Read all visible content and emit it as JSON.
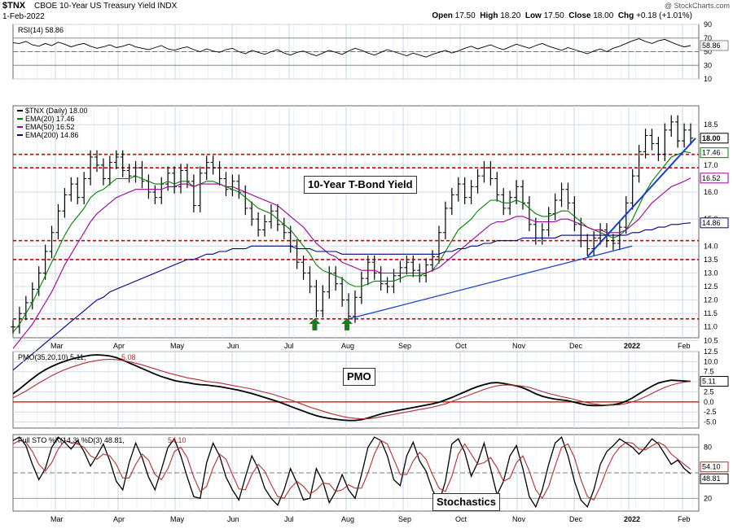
{
  "header": {
    "symbol": "$TNX",
    "name": "CBOE 10-Year US Treasury Yield INDX",
    "date": "1-Feb-2022",
    "copyright": "@ StockCharts.com",
    "quote": {
      "open_label": "Open",
      "open": "17.50",
      "high_label": "High",
      "high": "18.20",
      "low_label": "Low",
      "low": "17.50",
      "close_label": "Close",
      "close": "18.00",
      "chg_label": "Chg",
      "chg": "+0.18 (+1.01%)"
    }
  },
  "colors": {
    "price": "#000000",
    "ema20": "#008000",
    "ema50": "#990099",
    "ema200": "#000080",
    "trendline": "#1a3fcc",
    "support": "#cc0000",
    "pmo_signal": "#b03030",
    "arrow": "#1f7a1f",
    "grid": "#c9d4e3"
  },
  "chart_data": [
    {
      "type": "line",
      "panel": "RSI",
      "legend": "RSI(14) 58.86",
      "ylim": [
        10,
        90
      ],
      "y_ticks": [
        90,
        70,
        50,
        30,
        10
      ],
      "last_label": "58.86",
      "series": [
        {
          "name": "RSI(14)",
          "values": [
            63,
            62,
            65,
            60,
            58,
            62,
            59,
            64,
            61,
            57,
            60,
            62,
            58,
            55,
            57,
            60,
            56,
            58,
            61,
            57,
            55,
            53,
            56,
            59,
            54,
            52,
            55,
            57,
            53,
            50,
            54,
            51,
            49,
            53,
            55,
            50,
            47,
            52,
            49,
            46,
            50,
            53,
            48,
            45,
            49,
            51,
            47,
            44,
            48,
            52,
            49,
            46,
            51,
            55,
            52,
            48,
            45,
            49,
            53,
            50,
            47,
            44,
            48,
            45,
            42,
            46,
            49,
            52,
            48,
            51,
            55,
            58,
            54,
            57,
            60,
            56,
            53,
            57,
            61,
            58,
            55,
            59,
            62,
            58,
            55,
            52,
            56,
            53,
            50,
            47,
            51,
            54,
            50,
            55,
            58,
            62,
            66,
            69,
            65,
            62,
            66,
            68,
            64,
            60,
            57,
            59
          ]
        }
      ]
    },
    {
      "type": "line",
      "panel": "Price",
      "legend": [
        "$TNX (Daily) 18.00",
        "EMA(20) 17.46",
        "EMA(50) 16.52",
        "EMA(200) 14.86"
      ],
      "ylim": [
        10.6,
        19.2
      ],
      "y_ticks": [
        "18.5",
        "17.0",
        "16.0",
        "15.0",
        "14.0",
        "13.5",
        "13.0",
        "12.5",
        "12.0",
        "11.5",
        "11.0",
        "10.5"
      ],
      "y_tick_values": [
        18.5,
        17.0,
        16.0,
        15.0,
        14.0,
        13.5,
        13.0,
        12.5,
        12.0,
        11.5,
        11.0,
        10.5
      ],
      "x_ticks": [
        "Mar",
        "Apr",
        "May",
        "Jun",
        "Jul",
        "Aug",
        "Sep",
        "Oct",
        "Nov",
        "Dec",
        "2022",
        "Feb"
      ],
      "title": "10-Year T-Bond Yield",
      "last_labels": [
        {
          "text": "18.00",
          "value": 18.0,
          "series": "price"
        },
        {
          "text": "17.46",
          "value": 17.46,
          "series": "ema20"
        },
        {
          "text": "16.52",
          "value": 16.52,
          "series": "ema50"
        },
        {
          "text": "14.86",
          "value": 14.86,
          "series": "ema200"
        }
      ],
      "support_levels": [
        17.4,
        16.9,
        14.2,
        13.5,
        11.3
      ],
      "price": [
        11.0,
        11.5,
        11.9,
        12.4,
        13.0,
        13.8,
        14.5,
        15.3,
        15.9,
        16.3,
        15.8,
        16.5,
        17.3,
        17.0,
        16.5,
        17.1,
        17.3,
        16.8,
        16.6,
        16.9,
        16.4,
        16.0,
        15.8,
        16.3,
        16.7,
        16.2,
        16.8,
        16.4,
        15.5,
        16.7,
        17.1,
        16.9,
        16.5,
        16.1,
        16.4,
        16.0,
        15.4,
        15.0,
        14.6,
        14.9,
        15.3,
        14.8,
        14.5,
        14.0,
        13.4,
        13.0,
        12.5,
        11.6,
        12.3,
        13.0,
        12.6,
        12.0,
        11.4,
        12.1,
        12.8,
        13.4,
        13.0,
        12.6,
        12.5,
        12.9,
        13.2,
        13.4,
        13.1,
        12.9,
        13.3,
        13.6,
        14.5,
        15.4,
        15.9,
        16.3,
        15.8,
        16.2,
        16.6,
        16.9,
        16.5,
        15.9,
        15.4,
        15.8,
        16.2,
        15.6,
        14.8,
        14.3,
        14.6,
        15.2,
        15.7,
        16.1,
        15.6,
        14.8,
        14.2,
        13.9,
        14.3,
        14.6,
        14.2,
        14.1,
        14.7,
        15.6,
        16.6,
        17.5,
        18.1,
        17.8,
        17.4,
        18.3,
        18.6,
        17.9,
        18.3,
        18.0
      ],
      "ema20": [
        10.8,
        11.1,
        11.5,
        11.9,
        12.4,
        12.9,
        13.4,
        13.9,
        14.4,
        14.8,
        15.1,
        15.4,
        15.8,
        16.0,
        16.1,
        16.3,
        16.5,
        16.5,
        16.5,
        16.6,
        16.5,
        16.4,
        16.3,
        16.3,
        16.4,
        16.3,
        16.4,
        16.4,
        16.2,
        16.3,
        16.4,
        16.4,
        16.3,
        16.2,
        16.1,
        16.0,
        15.8,
        15.6,
        15.4,
        15.3,
        15.2,
        15.0,
        14.8,
        14.6,
        14.3,
        14.0,
        13.7,
        13.3,
        13.1,
        13.0,
        12.9,
        12.8,
        12.6,
        12.5,
        12.5,
        12.6,
        12.7,
        12.7,
        12.7,
        12.7,
        12.8,
        12.9,
        12.9,
        12.9,
        13.0,
        13.1,
        13.4,
        13.8,
        14.2,
        14.6,
        14.8,
        15.0,
        15.3,
        15.5,
        15.7,
        15.7,
        15.6,
        15.6,
        15.7,
        15.6,
        15.4,
        15.2,
        15.1,
        15.1,
        15.2,
        15.3,
        15.3,
        15.1,
        14.9,
        14.7,
        14.6,
        14.5,
        14.4,
        14.3,
        14.4,
        14.6,
        15.0,
        15.5,
        16.0,
        16.4,
        16.7,
        17.0,
        17.3,
        17.4,
        17.5,
        17.46
      ],
      "ema50": [
        10.2,
        10.5,
        10.8,
        11.1,
        11.5,
        11.9,
        12.3,
        12.8,
        13.3,
        13.7,
        14.1,
        14.5,
        14.9,
        15.2,
        15.4,
        15.6,
        15.8,
        15.9,
        16.0,
        16.1,
        16.1,
        16.1,
        16.1,
        16.1,
        16.2,
        16.2,
        16.3,
        16.3,
        16.2,
        16.3,
        16.3,
        16.3,
        16.3,
        16.2,
        16.2,
        16.1,
        16.0,
        15.9,
        15.8,
        15.7,
        15.6,
        15.5,
        15.3,
        15.1,
        14.9,
        14.7,
        14.4,
        14.1,
        13.9,
        13.7,
        13.6,
        13.4,
        13.3,
        13.2,
        13.1,
        13.1,
        13.1,
        13.0,
        13.0,
        13.0,
        13.0,
        13.0,
        13.0,
        13.0,
        13.0,
        13.1,
        13.2,
        13.4,
        13.6,
        13.8,
        14.0,
        14.2,
        14.4,
        14.6,
        14.8,
        14.9,
        14.9,
        15.0,
        15.1,
        15.1,
        15.0,
        14.9,
        14.9,
        14.9,
        14.9,
        15.0,
        15.0,
        14.9,
        14.8,
        14.7,
        14.6,
        14.6,
        14.5,
        14.5,
        14.5,
        14.6,
        14.8,
        15.0,
        15.3,
        15.6,
        15.8,
        16.0,
        16.2,
        16.3,
        16.4,
        16.52
      ],
      "ema200": [
        9.4,
        9.6,
        9.8,
        10.0,
        10.2,
        10.4,
        10.6,
        10.8,
        11.0,
        11.2,
        11.4,
        11.6,
        11.8,
        12.0,
        12.1,
        12.3,
        12.4,
        12.5,
        12.6,
        12.7,
        12.8,
        12.9,
        13.0,
        13.1,
        13.2,
        13.3,
        13.4,
        13.5,
        13.5,
        13.6,
        13.7,
        13.7,
        13.8,
        13.8,
        13.9,
        13.9,
        13.9,
        14.0,
        14.0,
        14.0,
        14.0,
        14.0,
        14.0,
        14.0,
        13.9,
        13.9,
        13.9,
        13.8,
        13.8,
        13.8,
        13.8,
        13.7,
        13.7,
        13.7,
        13.7,
        13.7,
        13.7,
        13.7,
        13.7,
        13.7,
        13.7,
        13.7,
        13.7,
        13.7,
        13.7,
        13.7,
        13.7,
        13.8,
        13.8,
        13.9,
        13.9,
        14.0,
        14.0,
        14.1,
        14.1,
        14.2,
        14.2,
        14.2,
        14.2,
        14.3,
        14.3,
        14.3,
        14.3,
        14.3,
        14.3,
        14.4,
        14.4,
        14.4,
        14.4,
        14.4,
        14.4,
        14.4,
        14.4,
        14.4,
        14.4,
        14.4,
        14.5,
        14.5,
        14.6,
        14.6,
        14.7,
        14.7,
        14.8,
        14.8,
        14.84,
        14.86
      ]
    },
    {
      "type": "line",
      "panel": "PMO",
      "legend": [
        "PMO(35,20,10) 5.11,",
        "5.08"
      ],
      "ylim": [
        -6.5,
        12.5
      ],
      "y_ticks": [
        "12.5",
        "10.0",
        "7.5",
        "5.0",
        "2.5",
        "0.0",
        "-2.5",
        "-5.0"
      ],
      "y_tick_values": [
        12.5,
        10.0,
        7.5,
        5.0,
        2.5,
        0.0,
        -2.5,
        -5.0
      ],
      "title": "PMO",
      "last_labels": [
        {
          "text": "5.11",
          "value": 5.11
        }
      ],
      "series": [
        {
          "name": "PMO",
          "values": [
            2.0,
            3.2,
            4.5,
            5.8,
            7.0,
            8.0,
            8.8,
            9.5,
            10.1,
            10.6,
            11.0,
            11.3,
            11.6,
            11.7,
            11.6,
            11.4,
            11.0,
            10.4,
            9.7,
            9.0,
            8.3,
            7.6,
            6.9,
            6.3,
            5.8,
            5.3,
            5.0,
            4.8,
            4.5,
            4.3,
            4.2,
            4.0,
            3.8,
            3.5,
            3.2,
            2.9,
            2.5,
            2.1,
            1.6,
            1.1,
            0.6,
            0.1,
            -0.5,
            -1.1,
            -1.7,
            -2.3,
            -2.9,
            -3.4,
            -3.8,
            -4.1,
            -4.3,
            -4.5,
            -4.6,
            -4.6,
            -4.4,
            -4.0,
            -3.5,
            -3.0,
            -2.6,
            -2.3,
            -2.0,
            -1.7,
            -1.4,
            -1.1,
            -0.8,
            -0.5,
            -0.1,
            0.5,
            1.1,
            1.8,
            2.5,
            3.2,
            3.8,
            4.3,
            4.7,
            4.8,
            4.6,
            4.3,
            4.0,
            3.5,
            2.8,
            2.0,
            1.4,
            1.0,
            0.7,
            0.5,
            0.3,
            -0.1,
            -0.5,
            -0.8,
            -0.9,
            -0.9,
            -0.8,
            -0.7,
            -0.4,
            0.2,
            1.0,
            2.0,
            3.0,
            3.9,
            4.7,
            5.1,
            5.4,
            5.3,
            5.2,
            5.11
          ]
        },
        {
          "name": "Signal",
          "values": [
            1.0,
            1.8,
            2.7,
            3.7,
            4.7,
            5.6,
            6.5,
            7.3,
            8.0,
            8.6,
            9.1,
            9.6,
            10.0,
            10.3,
            10.5,
            10.6,
            10.5,
            10.3,
            10.0,
            9.6,
            9.2,
            8.7,
            8.2,
            7.7,
            7.2,
            6.8,
            6.4,
            6.0,
            5.7,
            5.4,
            5.1,
            4.9,
            4.7,
            4.4,
            4.1,
            3.8,
            3.5,
            3.2,
            2.8,
            2.4,
            2.0,
            1.5,
            1.0,
            0.5,
            -0.1,
            -0.7,
            -1.3,
            -1.8,
            -2.3,
            -2.8,
            -3.2,
            -3.6,
            -3.9,
            -4.1,
            -4.2,
            -4.2,
            -4.0,
            -3.7,
            -3.4,
            -3.1,
            -2.8,
            -2.5,
            -2.2,
            -1.9,
            -1.6,
            -1.3,
            -0.9,
            -0.5,
            0.1,
            0.7,
            1.3,
            1.9,
            2.5,
            3.1,
            3.6,
            4.0,
            4.2,
            4.2,
            4.1,
            3.9,
            3.6,
            3.1,
            2.6,
            2.1,
            1.7,
            1.3,
            1.0,
            0.6,
            0.2,
            -0.2,
            -0.5,
            -0.7,
            -0.8,
            -0.8,
            -0.7,
            -0.4,
            0.0,
            0.6,
            1.3,
            2.1,
            2.9,
            3.6,
            4.2,
            4.6,
            4.9,
            5.08
          ]
        }
      ]
    },
    {
      "type": "line",
      "panel": "Stochastics",
      "legend": [
        "Full STO %K(14,3) %D(3) 48.81,",
        "54.10"
      ],
      "ylim": [
        5,
        95
      ],
      "y_ticks": [
        "80",
        "20"
      ],
      "y_tick_values": [
        80,
        20
      ],
      "title": "Stochastics",
      "last_labels": [
        {
          "text": "54.10",
          "value": 54.1
        },
        {
          "text": "48.81",
          "value": 48.81
        }
      ],
      "series": [
        {
          "name": "%K",
          "values": [
            88,
            92,
            82,
            60,
            42,
            55,
            80,
            92,
            86,
            78,
            88,
            75,
            58,
            70,
            84,
            64,
            40,
            30,
            62,
            85,
            68,
            45,
            30,
            54,
            80,
            90,
            70,
            45,
            22,
            20,
            62,
            85,
            70,
            45,
            30,
            18,
            45,
            70,
            55,
            32,
            20,
            12,
            30,
            55,
            38,
            18,
            20,
            55,
            40,
            15,
            28,
            48,
            30,
            20,
            48,
            80,
            92,
            88,
            70,
            42,
            35,
            70,
            86,
            64,
            52,
            30,
            15,
            40,
            84,
            90,
            74,
            46,
            62,
            85,
            55,
            24,
            40,
            70,
            82,
            55,
            22,
            10,
            30,
            60,
            85,
            92,
            70,
            40,
            18,
            10,
            30,
            60,
            75,
            82,
            90,
            85,
            80,
            72,
            80,
            90,
            84,
            72,
            60,
            65,
            55,
            48.81
          ]
        },
        {
          "name": "%D",
          "values": [
            84,
            88,
            86,
            75,
            60,
            52,
            62,
            78,
            88,
            85,
            84,
            80,
            70,
            66,
            72,
            70,
            60,
            44,
            44,
            60,
            72,
            65,
            48,
            42,
            55,
            75,
            80,
            68,
            45,
            28,
            34,
            56,
            72,
            66,
            48,
            31,
            30,
            48,
            60,
            52,
            36,
            22,
            20,
            32,
            40,
            34,
            25,
            30,
            38,
            37,
            28,
            30,
            36,
            32,
            32,
            50,
            72,
            88,
            84,
            66,
            48,
            48,
            64,
            74,
            66,
            48,
            32,
            28,
            46,
            72,
            84,
            72,
            60,
            62,
            68,
            56,
            40,
            44,
            62,
            70,
            52,
            30,
            20,
            34,
            58,
            80,
            84,
            68,
            42,
            22,
            18,
            34,
            54,
            70,
            80,
            86,
            85,
            78,
            77,
            82,
            86,
            82,
            72,
            66,
            60,
            54.1
          ]
        }
      ]
    }
  ],
  "x_axis_labels": [
    "Mar",
    "Apr",
    "May",
    "Jun",
    "Jul",
    "Aug",
    "Sep",
    "Oct",
    "Nov",
    "Dec",
    "2022",
    "Feb"
  ],
  "annotations": {
    "price_title": "10-Year T-Bond Yield",
    "pmo_title": "PMO",
    "sto_title": "Stochastics"
  }
}
